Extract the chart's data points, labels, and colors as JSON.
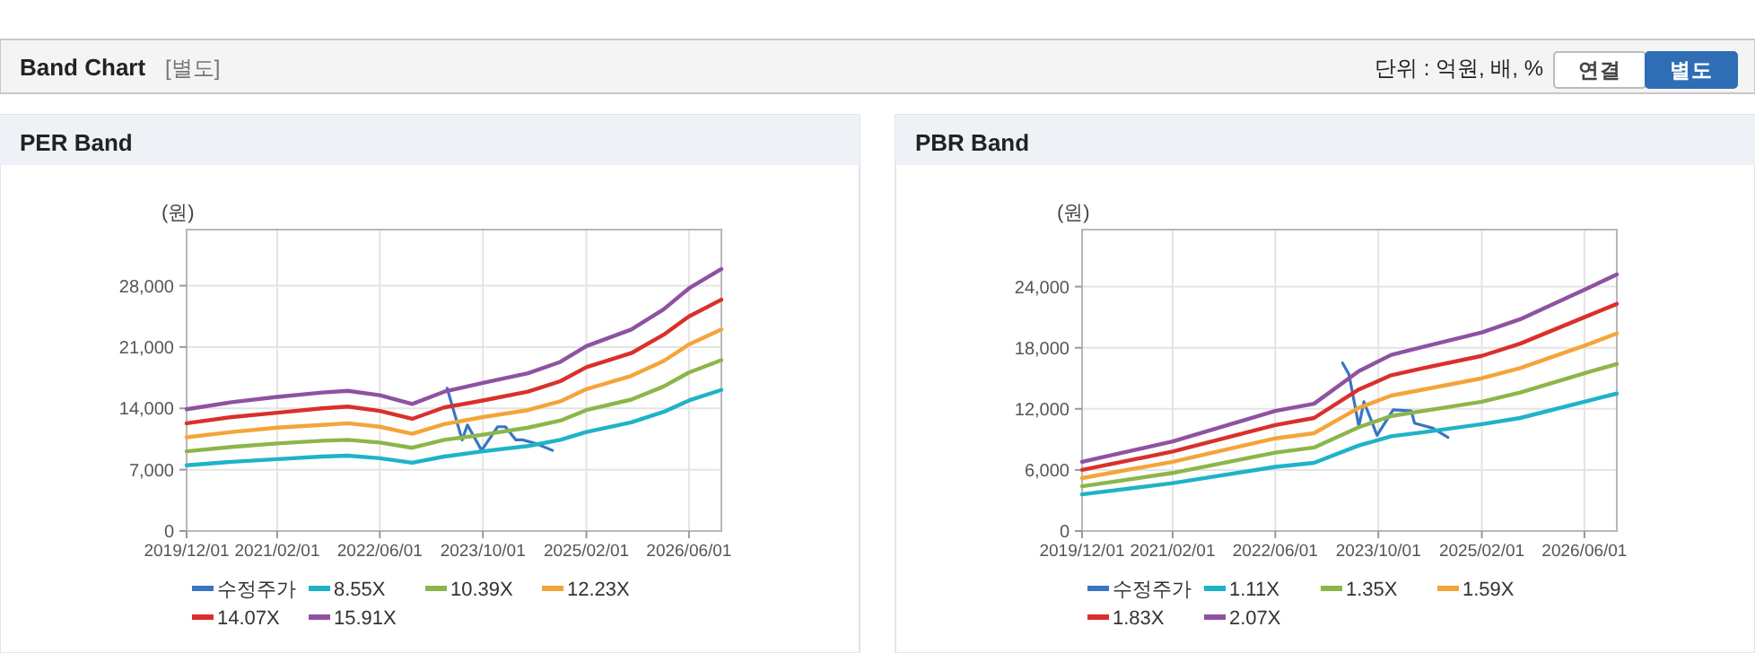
{
  "chart_data": [
    {
      "type": "other",
      "title": "Band Chart",
      "subtitle": "[별도]",
      "annotations": [
        "단위 : 억원, 배, %",
        "연결",
        "별도"
      ]
    },
    {
      "type": "line",
      "title": "PER Band",
      "ylabel": "(원)",
      "xlim": [
        "2019-12-01",
        "2026-11-01"
      ],
      "xticks": [
        {
          "value": "2019-12-01",
          "label": "2019/12/01"
        },
        {
          "value": "2021-02-01",
          "label": "2021/02/01"
        },
        {
          "value": "2022-06-01",
          "label": "2022/06/01"
        },
        {
          "value": "2023-10-01",
          "label": "2023/10/01"
        },
        {
          "value": "2025-02-01",
          "label": "2025/02/01"
        },
        {
          "value": "2026-06-01",
          "label": "2026/06/01"
        }
      ],
      "ylim": [
        0,
        34400
      ],
      "yticks": [
        {
          "value": 0,
          "label": "0"
        },
        {
          "value": 7000,
          "label": "7,000"
        },
        {
          "value": 14000,
          "label": "14,000"
        },
        {
          "value": 21000,
          "label": "21,000"
        },
        {
          "value": 28000,
          "label": "28,000"
        }
      ],
      "grid": true,
      "legend": "bottom",
      "marker": "none",
      "line_style": "solid",
      "x": [
        "2019-12-01",
        "2020-07-01",
        "2021-02-01",
        "2021-09-01",
        "2022-01-01",
        "2022-06-01",
        "2022-11-01",
        "2023-04-01",
        "2023-10-01",
        "2024-05-01",
        "2024-10-01",
        "2025-02-01",
        "2025-09-01",
        "2026-02-01",
        "2026-06-01",
        "2026-11-01"
      ],
      "series": [
        {
          "name": "수정주가",
          "color": "#3a75c4",
          "x": [
            "2023-04-15",
            "2023-06-25",
            "2023-07-20",
            "2023-09-25",
            "2023-12-10",
            "2024-01-15",
            "2024-03-05",
            "2024-04-05",
            "2024-06-05",
            "2024-08-25"
          ],
          "values": [
            16300,
            10400,
            12100,
            9200,
            11900,
            11900,
            10400,
            10400,
            10000,
            9200
          ]
        },
        {
          "name": "8.55X",
          "color": "#1fb3c8",
          "values": [
            7500,
            7900,
            8200,
            8500,
            8600,
            8300,
            7800,
            8500,
            9100,
            9700,
            10400,
            11300,
            12400,
            13600,
            14900,
            16100
          ]
        },
        {
          "name": "10.39X",
          "color": "#8cb64a",
          "values": [
            9100,
            9600,
            10000,
            10300,
            10400,
            10100,
            9500,
            10400,
            11000,
            11800,
            12600,
            13800,
            15000,
            16500,
            18100,
            19500
          ]
        },
        {
          "name": "12.23X",
          "color": "#f5a43a",
          "values": [
            10700,
            11300,
            11800,
            12100,
            12300,
            11900,
            11100,
            12200,
            13000,
            13800,
            14800,
            16200,
            17700,
            19400,
            21300,
            23000
          ]
        },
        {
          "name": "14.07X",
          "color": "#d9302c",
          "values": [
            12300,
            13000,
            13500,
            14000,
            14200,
            13700,
            12800,
            14100,
            14900,
            15900,
            17100,
            18700,
            20300,
            22400,
            24500,
            26400
          ]
        },
        {
          "name": "15.91X",
          "color": "#8e52a0",
          "values": [
            13900,
            14700,
            15300,
            15800,
            16000,
            15500,
            14500,
            15900,
            16900,
            18000,
            19300,
            21100,
            23000,
            25300,
            27700,
            29900
          ]
        }
      ]
    },
    {
      "type": "line",
      "title": "PBR Band",
      "ylabel": "(원)",
      "xlim": [
        "2019-12-01",
        "2026-11-01"
      ],
      "xticks": [
        {
          "value": "2019-12-01",
          "label": "2019/12/01"
        },
        {
          "value": "2021-02-01",
          "label": "2021/02/01"
        },
        {
          "value": "2022-06-01",
          "label": "2022/06/01"
        },
        {
          "value": "2023-10-01",
          "label": "2023/10/01"
        },
        {
          "value": "2025-02-01",
          "label": "2025/02/01"
        },
        {
          "value": "2026-06-01",
          "label": "2026/06/01"
        }
      ],
      "ylim": [
        0,
        29600
      ],
      "yticks": [
        {
          "value": 0,
          "label": "0"
        },
        {
          "value": 6000,
          "label": "6,000"
        },
        {
          "value": 12000,
          "label": "12,000"
        },
        {
          "value": 18000,
          "label": "18,000"
        },
        {
          "value": 24000,
          "label": "24,000"
        }
      ],
      "grid": true,
      "legend": "bottom",
      "marker": "none",
      "line_style": "solid",
      "x": [
        "2019-12-01",
        "2021-02-01",
        "2022-06-01",
        "2022-12-01",
        "2023-07-01",
        "2023-12-01",
        "2024-05-01",
        "2025-02-01",
        "2025-08-01",
        "2026-06-01",
        "2026-11-01"
      ],
      "series": [
        {
          "name": "수정주가",
          "color": "#3a75c4",
          "x": [
            "2023-04-15",
            "2023-05-15",
            "2023-07-01",
            "2023-07-25",
            "2023-09-25",
            "2023-12-10",
            "2024-03-05",
            "2024-03-20",
            "2024-06-15",
            "2024-08-25"
          ],
          "values": [
            16500,
            15400,
            10300,
            12700,
            9400,
            11900,
            11800,
            10600,
            10100,
            9200
          ]
        },
        {
          "name": "1.11X",
          "color": "#1fb3c8",
          "values": [
            3600,
            4700,
            6300,
            6700,
            8400,
            9300,
            9700,
            10500,
            11100,
            12700,
            13500
          ]
        },
        {
          "name": "1.35X",
          "color": "#8cb64a",
          "values": [
            4400,
            5700,
            7700,
            8200,
            10200,
            11300,
            11800,
            12700,
            13600,
            15500,
            16400
          ]
        },
        {
          "name": "1.59X",
          "color": "#f5a43a",
          "values": [
            5200,
            6800,
            9100,
            9600,
            12100,
            13300,
            13900,
            15000,
            16000,
            18200,
            19400
          ]
        },
        {
          "name": "1.83X",
          "color": "#d9302c",
          "values": [
            6000,
            7800,
            10400,
            11100,
            13900,
            15300,
            16000,
            17200,
            18400,
            21000,
            22300
          ]
        },
        {
          "name": "2.07X",
          "color": "#8e52a0",
          "values": [
            6800,
            8800,
            11800,
            12500,
            15700,
            17300,
            18100,
            19500,
            20800,
            23700,
            25200
          ]
        }
      ]
    }
  ]
}
